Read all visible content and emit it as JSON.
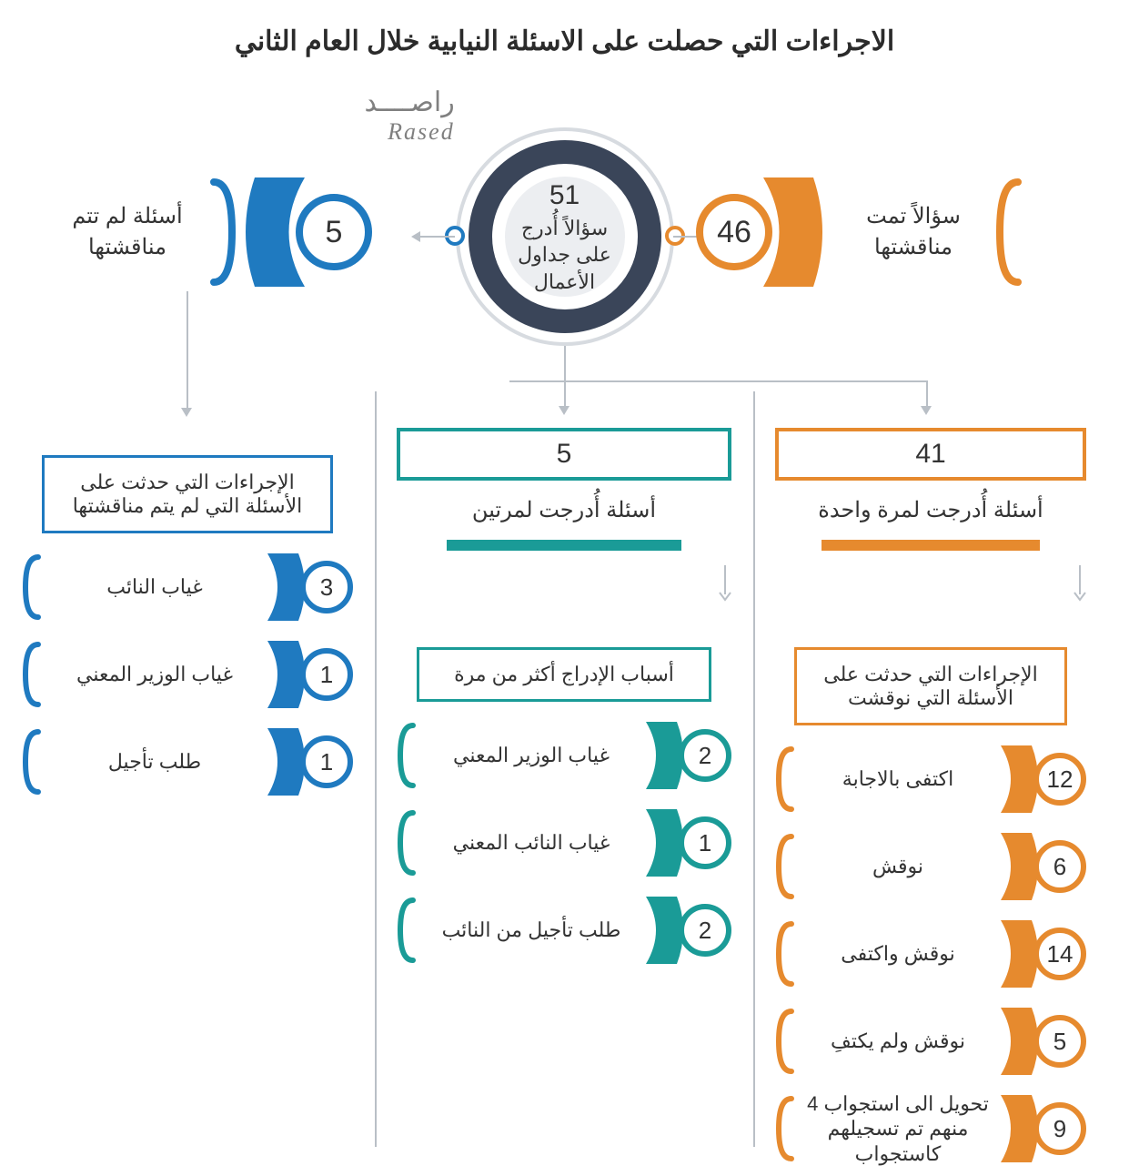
{
  "title": "الاجراءات التي حصلت على الاسئلة النيابية خلال العام الثاني",
  "logo": {
    "ar": "راصــــد",
    "en": "Rased"
  },
  "hub": {
    "number": "51",
    "text": "سؤالاً أُدرج على جداول الأعمال"
  },
  "colors": {
    "orange": "#e68a2e",
    "teal": "#1a9b97",
    "blue": "#1f7ac0",
    "navy": "#3a4559",
    "grey": "#d7dbe0",
    "line": "#b9bfc6"
  },
  "pills": {
    "right": {
      "value": "46",
      "label": "سؤالاً تمت مناقشتها",
      "color": "orange"
    },
    "left": {
      "value": "5",
      "label": "أسئلة لم تتم مناقشتها",
      "color": "blue"
    }
  },
  "columns": {
    "orange": {
      "head": "41",
      "sub": "أسئلة أُدرجت لمرة واحدة",
      "mid": "الإجراءات التي حدثت على الأسئلة التي نوقشت",
      "items": [
        {
          "n": "12",
          "t": "اكتفى بالاجابة"
        },
        {
          "n": "6",
          "t": "نوقش"
        },
        {
          "n": "14",
          "t": "نوقش واكتفى"
        },
        {
          "n": "5",
          "t": "نوقش ولم يكتفِ"
        },
        {
          "n": "9",
          "t": "تحويل الى استجواب 4 منهم تم تسجيلهم كاستجواب"
        }
      ]
    },
    "teal": {
      "head": "5",
      "sub": "أسئلة أُدرجت لمرتين",
      "mid": "أسباب الإدراج أكثر من مرة",
      "items": [
        {
          "n": "2",
          "t": "غياب الوزير المعني"
        },
        {
          "n": "1",
          "t": "غياب النائب المعني"
        },
        {
          "n": "2",
          "t": "طلب تأجيل من النائب"
        }
      ]
    },
    "blue": {
      "mid": "الإجراءات التي حدثت على الأسئلة التي لم يتم مناقشتها",
      "items": [
        {
          "n": "3",
          "t": "غياب النائب"
        },
        {
          "n": "1",
          "t": "غياب الوزير المعني"
        },
        {
          "n": "1",
          "t": "طلب تأجيل"
        }
      ]
    }
  }
}
